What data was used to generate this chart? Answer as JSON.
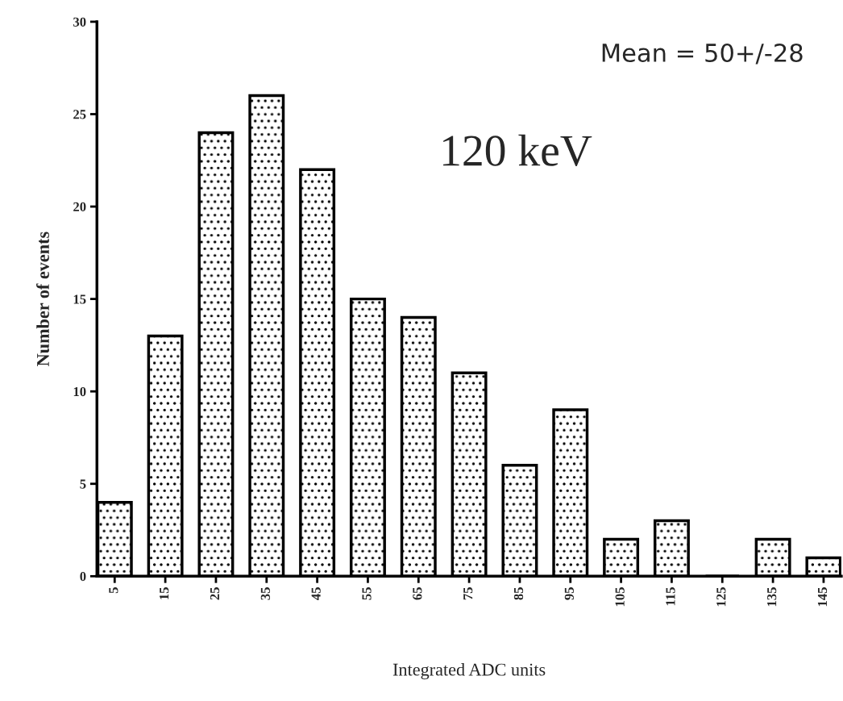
{
  "chart_data": {
    "type": "bar",
    "xlabel": "Integrated ADC units",
    "ylabel": "Number of events",
    "categories": [
      "5",
      "15",
      "25",
      "35",
      "45",
      "55",
      "65",
      "75",
      "85",
      "95",
      "105",
      "115",
      "125",
      "135",
      "145"
    ],
    "values": [
      4,
      13,
      24,
      26,
      22,
      15,
      14,
      11,
      6,
      9,
      2,
      3,
      0,
      2,
      1
    ],
    "color": "#000000",
    "ylim": [
      0,
      30
    ],
    "yticks": [
      0,
      5,
      10,
      15,
      20,
      25,
      30
    ],
    "grid": false,
    "legend": false,
    "annotations": [
      "Mean = 50+/-28",
      "120 keV"
    ]
  }
}
